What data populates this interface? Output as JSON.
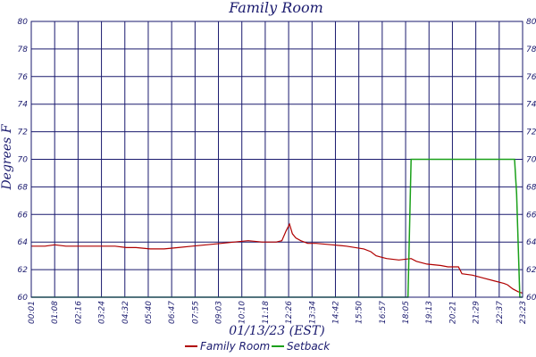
{
  "chart_data": {
    "type": "line",
    "title": "Family Room",
    "xlabel": "01/13/23 (EST)",
    "ylabel": "Degrees F",
    "ylim": [
      60,
      80
    ],
    "yticks": [
      60,
      62,
      64,
      66,
      68,
      70,
      72,
      74,
      76,
      78,
      80
    ],
    "x_ticks": [
      "00:01",
      "01:08",
      "02:16",
      "03:24",
      "04:32",
      "05:40",
      "06:47",
      "07:55",
      "09:03",
      "10:10",
      "11:18",
      "12:26",
      "13:34",
      "14:42",
      "15:50",
      "16:57",
      "18:05",
      "19:13",
      "20:21",
      "21:29",
      "22:37",
      "23:23"
    ],
    "x_range_minutes": [
      1,
      1403
    ],
    "grid": true,
    "legend_position": "bottom",
    "series": [
      {
        "name": "Family Room",
        "color": "#b00000",
        "points": [
          [
            1,
            63.7
          ],
          [
            40,
            63.7
          ],
          [
            68,
            63.8
          ],
          [
            100,
            63.7
          ],
          [
            136,
            63.7
          ],
          [
            180,
            63.7
          ],
          [
            240,
            63.7
          ],
          [
            272,
            63.6
          ],
          [
            300,
            63.6
          ],
          [
            340,
            63.5
          ],
          [
            380,
            63.5
          ],
          [
            420,
            63.6
          ],
          [
            460,
            63.7
          ],
          [
            500,
            63.8
          ],
          [
            543,
            63.9
          ],
          [
            580,
            64.0
          ],
          [
            620,
            64.1
          ],
          [
            660,
            64.0
          ],
          [
            700,
            64.0
          ],
          [
            716,
            64.1
          ],
          [
            728,
            64.8
          ],
          [
            738,
            65.3
          ],
          [
            746,
            64.6
          ],
          [
            756,
            64.3
          ],
          [
            770,
            64.1
          ],
          [
            790,
            63.9
          ],
          [
            814,
            63.9
          ],
          [
            860,
            63.8
          ],
          [
            900,
            63.7
          ],
          [
            950,
            63.5
          ],
          [
            970,
            63.3
          ],
          [
            985,
            63.0
          ],
          [
            1000,
            62.9
          ],
          [
            1015,
            62.8
          ],
          [
            1050,
            62.7
          ],
          [
            1085,
            62.8
          ],
          [
            1100,
            62.6
          ],
          [
            1130,
            62.4
          ],
          [
            1170,
            62.3
          ],
          [
            1190,
            62.2
          ],
          [
            1220,
            62.2
          ],
          [
            1230,
            61.7
          ],
          [
            1260,
            61.6
          ],
          [
            1290,
            61.4
          ],
          [
            1320,
            61.2
          ],
          [
            1350,
            61.0
          ],
          [
            1360,
            60.9
          ],
          [
            1375,
            60.6
          ],
          [
            1390,
            60.4
          ],
          [
            1403,
            60.3
          ]
        ]
      },
      {
        "name": "Setback",
        "color": "#1aa01a",
        "points": [
          [
            1,
            60
          ],
          [
            1076,
            60
          ],
          [
            1085,
            70
          ],
          [
            1090,
            70
          ],
          [
            1380,
            70
          ],
          [
            1386,
            67.5
          ],
          [
            1395,
            60
          ],
          [
            1403,
            60
          ]
        ]
      }
    ]
  }
}
